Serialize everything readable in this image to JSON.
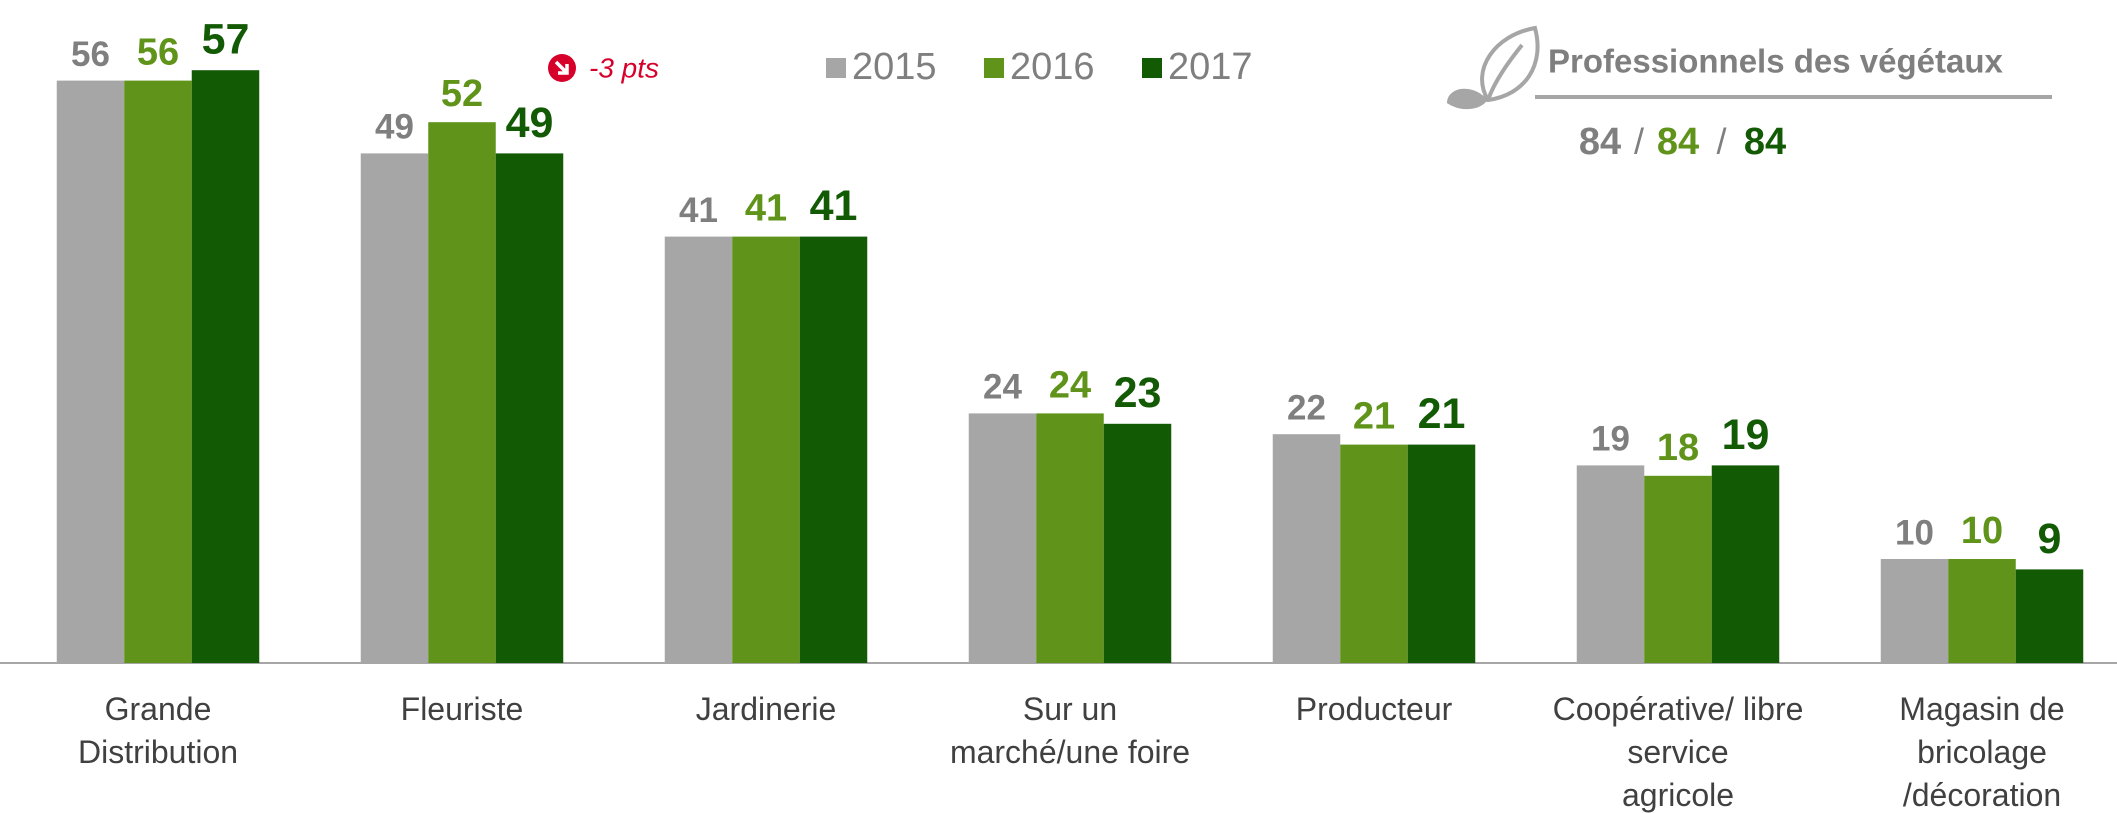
{
  "chart_data": {
    "type": "bar",
    "categories": [
      "Grande\nDistribution",
      "Fleuriste",
      "Jardinerie",
      "Sur un\nmarché/une foire",
      "Producteur",
      "Coopérative/ libre\nservice\nagricole",
      "Magasin de\nbricolage\n/décoration"
    ],
    "series": [
      {
        "name": "2015",
        "color": "#a6a6a6",
        "label_color": "#7f7f7f",
        "values": [
          56,
          49,
          41,
          24,
          22,
          19,
          10
        ]
      },
      {
        "name": "2016",
        "color": "#5f931a",
        "label_color": "#5f931a",
        "values": [
          56,
          52,
          41,
          24,
          21,
          18,
          10
        ]
      },
      {
        "name": "2017",
        "color": "#135a05",
        "label_color": "#135a05",
        "values": [
          57,
          49,
          41,
          23,
          21,
          19,
          9
        ]
      }
    ],
    "ylim": [
      0,
      60
    ],
    "legend": "top",
    "annotation": {
      "text": "-3 pts",
      "category": 1,
      "series": 2,
      "color": "#d6002a"
    },
    "summary": {
      "title": "Professionnels des végétaux",
      "separator": "/",
      "values": [
        84,
        84,
        84
      ]
    }
  }
}
